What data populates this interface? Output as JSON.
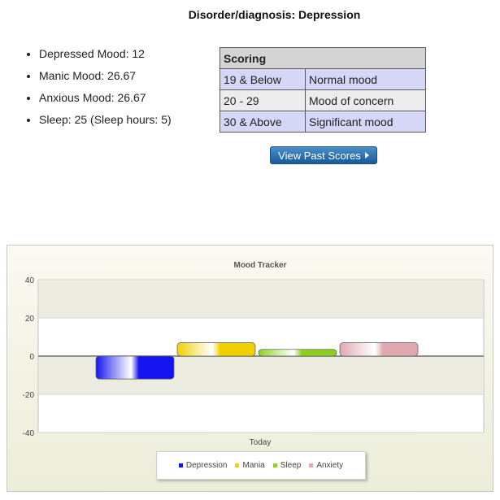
{
  "page": {
    "title": "Disorder/diagnosis: Depression"
  },
  "metrics": [
    "Depressed Mood: 12",
    "Manic Mood: 26.67",
    "Anxious Mood: 26.67",
    "Sleep: 25 (Sleep hours: 5)"
  ],
  "scoring": {
    "header": "Scoring",
    "rows": [
      {
        "range": "19 & Below",
        "meaning": "Normal mood"
      },
      {
        "range": "20 - 29",
        "meaning": "Mood of concern"
      },
      {
        "range": "30 & Above",
        "meaning": "Significant mood"
      }
    ]
  },
  "buttons": {
    "view_past_scores": "View Past Scores"
  },
  "chart_data": {
    "type": "bar",
    "title": "Mood Tracker",
    "categories": [
      "Today"
    ],
    "series": [
      {
        "name": "Depression",
        "values": [
          -12
        ],
        "color": "#1414f0"
      },
      {
        "name": "Mania",
        "values": [
          7
        ],
        "color": "#f0d000"
      },
      {
        "name": "Sleep",
        "values": [
          3.5
        ],
        "color": "#8cd020"
      },
      {
        "name": "Anxiety",
        "values": [
          7
        ],
        "color": "#e0a8b0"
      }
    ],
    "ylim": [
      -40,
      40
    ],
    "yticks": [
      40,
      20,
      0,
      -20,
      -40
    ],
    "grid": true,
    "legend_position": "bottom-center"
  }
}
